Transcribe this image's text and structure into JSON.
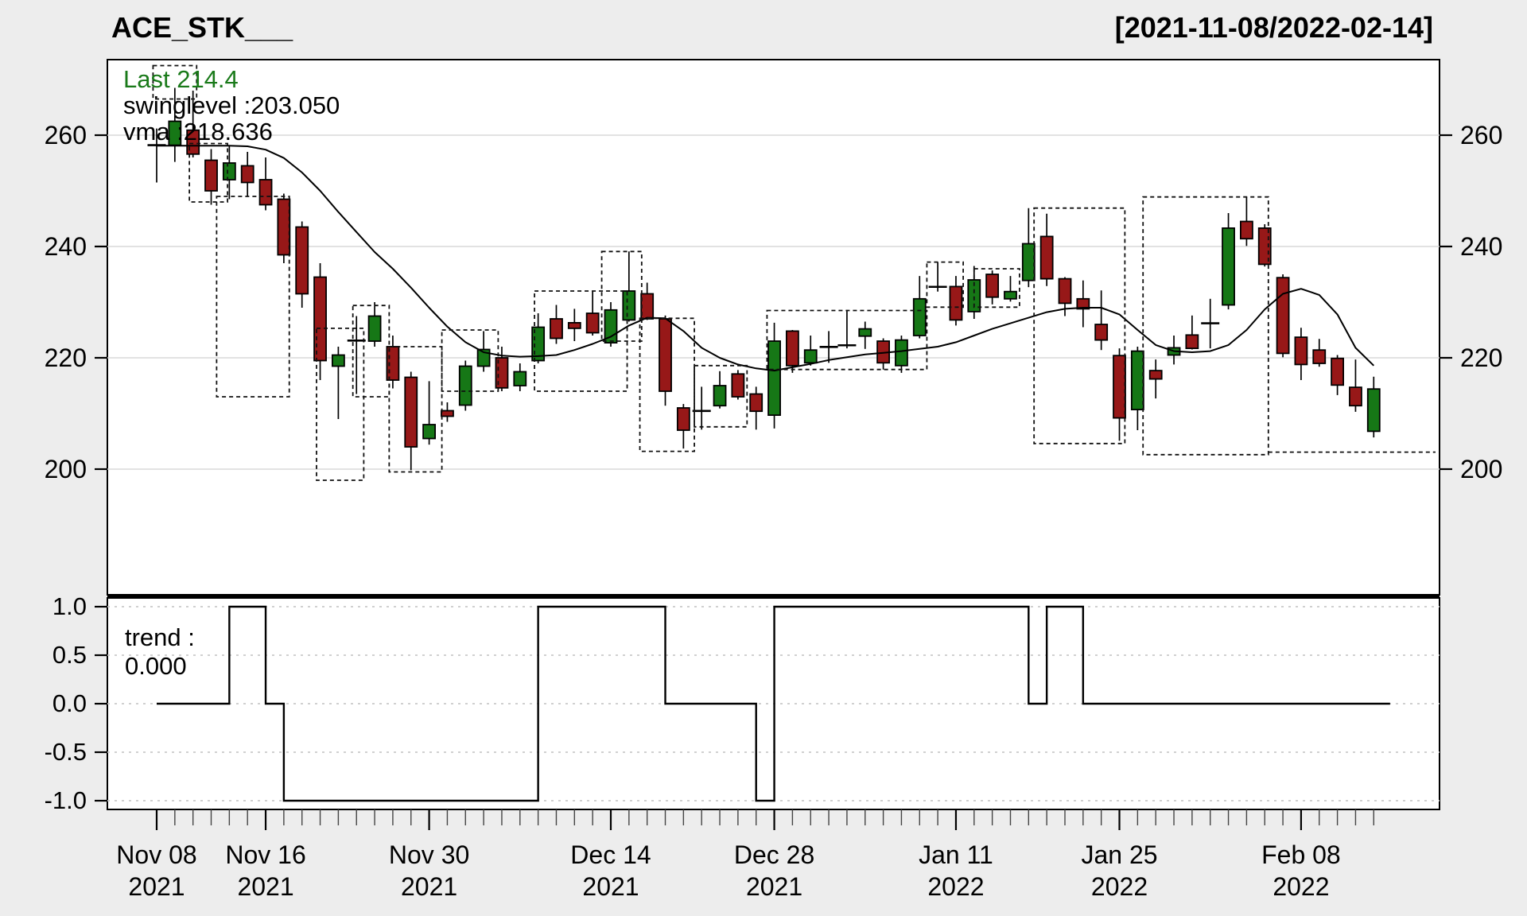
{
  "header": {
    "title": "ACE_STK___",
    "date_range": "[2021-11-08/2022-02-14]"
  },
  "overlay": {
    "last_label": "Last 214.4",
    "swinglevel_label": "swinglevel :203.050",
    "vma_label": "vma :218.636",
    "last_value": 214.4,
    "swinglevel_value": 203.05,
    "vma_value": 218.636
  },
  "trend_panel": {
    "label_line1": "trend :",
    "label_line2": "0.000",
    "tick_labels": [
      "1.0",
      "0.5",
      "0.0",
      "-0.5",
      "-1.0"
    ],
    "tick_values": [
      1,
      0.5,
      0,
      -0.5,
      -1
    ]
  },
  "price_axis": {
    "tick_labels": [
      "260",
      "240",
      "220",
      "200"
    ],
    "tick_values": [
      260,
      240,
      220,
      200
    ]
  },
  "x_axis": {
    "labels": [
      {
        "i": 0,
        "line1": "Nov 08",
        "line2": "2021"
      },
      {
        "i": 6,
        "line1": "Nov 16",
        "line2": "2021"
      },
      {
        "i": 15,
        "line1": "Nov 30",
        "line2": "2021"
      },
      {
        "i": 25,
        "line1": "Dec 14",
        "line2": "2021"
      },
      {
        "i": 34,
        "line1": "Dec 28",
        "line2": "2021"
      },
      {
        "i": 44,
        "line1": "Jan 11",
        "line2": "2022"
      },
      {
        "i": 53,
        "line1": "Jan 25",
        "line2": "2022"
      },
      {
        "i": 63,
        "line1": "Feb 08",
        "line2": "2022"
      }
    ]
  },
  "colors": {
    "up": "#167716",
    "down": "#971818",
    "wick": "#000000",
    "vma_line": "#000000",
    "trend_line": "#000000",
    "grid_price": "#d8d8d8",
    "grid_trend": "#c9c9c9",
    "panel_bg": "#ffffff",
    "figure_bg": "#ededed",
    "box_dash": "#111111",
    "axis_text": "#000000",
    "green_text": "#1a7a1a"
  },
  "chart_data": {
    "type": "candlestick",
    "title": "ACE_STK___",
    "ylim_price": [
      177,
      273.5
    ],
    "ylim_trend": [
      -1,
      1
    ],
    "grid": true,
    "dates": [
      "2021-11-08",
      "2021-11-09",
      "2021-11-10",
      "2021-11-11",
      "2021-11-12",
      "2021-11-15",
      "2021-11-16",
      "2021-11-17",
      "2021-11-18",
      "2021-11-19",
      "2021-11-22",
      "2021-11-23",
      "2021-11-24",
      "2021-11-26",
      "2021-11-29",
      "2021-11-30",
      "2021-12-01",
      "2021-12-02",
      "2021-12-03",
      "2021-12-06",
      "2021-12-07",
      "2021-12-08",
      "2021-12-09",
      "2021-12-10",
      "2021-12-13",
      "2021-12-14",
      "2021-12-15",
      "2021-12-16",
      "2021-12-17",
      "2021-12-20",
      "2021-12-21",
      "2021-12-22",
      "2021-12-23",
      "2021-12-27",
      "2021-12-28",
      "2021-12-29",
      "2021-12-30",
      "2021-12-31",
      "2022-01-03",
      "2022-01-04",
      "2022-01-05",
      "2022-01-06",
      "2022-01-07",
      "2022-01-10",
      "2022-01-11",
      "2022-01-12",
      "2022-01-13",
      "2022-01-14",
      "2022-01-18",
      "2022-01-19",
      "2022-01-20",
      "2022-01-21",
      "2022-01-24",
      "2022-01-25",
      "2022-01-26",
      "2022-01-27",
      "2022-01-28",
      "2022-01-31",
      "2022-02-01",
      "2022-02-02",
      "2022-02-03",
      "2022-02-04",
      "2022-02-07",
      "2022-02-08",
      "2022-02-09",
      "2022-02-10",
      "2022-02-11",
      "2022-02-14"
    ],
    "ohlc": [
      [
        258.2,
        261.2,
        251.5,
        258.2
      ],
      [
        258.2,
        268.5,
        255.2,
        262.5
      ],
      [
        260.9,
        268.0,
        256.0,
        256.6
      ],
      [
        255.5,
        257.5,
        247.5,
        250.0
      ],
      [
        252.0,
        258.0,
        248.5,
        255.0
      ],
      [
        254.5,
        257.0,
        249.0,
        251.5
      ],
      [
        252.0,
        256.0,
        246.5,
        247.5
      ],
      [
        248.5,
        249.5,
        237.0,
        238.5
      ],
      [
        243.5,
        244.5,
        229.0,
        231.5
      ],
      [
        234.5,
        237.0,
        216.0,
        219.5
      ],
      [
        218.5,
        222.0,
        209.0,
        220.5
      ],
      [
        223.0,
        227.5,
        213.5,
        223.2
      ],
      [
        223.0,
        230.0,
        222.0,
        227.5
      ],
      [
        222.0,
        224.0,
        214.5,
        216.0
      ],
      [
        216.5,
        217.5,
        199.8,
        204.0
      ],
      [
        205.5,
        215.8,
        204.4,
        208.0
      ],
      [
        210.5,
        212.0,
        208.5,
        209.5
      ],
      [
        211.5,
        219.5,
        210.5,
        218.5
      ],
      [
        218.5,
        224.8,
        217.5,
        221.5
      ],
      [
        220.0,
        222.0,
        214.0,
        214.6
      ],
      [
        215.0,
        219.0,
        214.0,
        217.5
      ],
      [
        219.5,
        228.0,
        219.0,
        225.5
      ],
      [
        227.0,
        229.5,
        222.5,
        223.5
      ],
      [
        226.3,
        228.8,
        223.0,
        225.3
      ],
      [
        228.0,
        232.0,
        224.0,
        224.5
      ],
      [
        222.7,
        230.0,
        222.0,
        228.6
      ],
      [
        226.8,
        239.1,
        226.5,
        232.0
      ],
      [
        231.5,
        233.5,
        226.8,
        227.0
      ],
      [
        227.0,
        227.6,
        211.4,
        214.0
      ],
      [
        211.0,
        211.7,
        203.7,
        207.0
      ],
      [
        210.4,
        214.8,
        207.1,
        210.5
      ],
      [
        211.4,
        217.6,
        210.9,
        215.0
      ],
      [
        217.1,
        217.8,
        212.5,
        213.0
      ],
      [
        213.5,
        214.8,
        207.1,
        210.4
      ],
      [
        209.7,
        226.3,
        207.3,
        223.0
      ],
      [
        224.8,
        225.0,
        217.3,
        218.6
      ],
      [
        219.1,
        224.0,
        218.6,
        221.4
      ],
      [
        221.9,
        224.8,
        219.1,
        222.0
      ],
      [
        222.2,
        228.6,
        221.7,
        222.3
      ],
      [
        223.9,
        226.5,
        221.6,
        225.2
      ],
      [
        223.0,
        223.5,
        217.9,
        219.1
      ],
      [
        218.6,
        224.0,
        217.3,
        223.2
      ],
      [
        224.0,
        234.7,
        223.5,
        230.6
      ],
      [
        232.7,
        237.2,
        231.9,
        232.8
      ],
      [
        232.8,
        234.7,
        225.8,
        226.8
      ],
      [
        228.3,
        236.5,
        227.0,
        234.0
      ],
      [
        235.0,
        235.7,
        229.6,
        230.9
      ],
      [
        230.6,
        234.7,
        230.1,
        231.9
      ],
      [
        233.9,
        246.9,
        232.7,
        240.5
      ],
      [
        241.8,
        245.9,
        232.9,
        234.2
      ],
      [
        234.2,
        234.5,
        227.5,
        229.8
      ],
      [
        230.6,
        233.9,
        225.5,
        228.8
      ],
      [
        226.0,
        232.1,
        221.4,
        223.2
      ],
      [
        220.4,
        221.7,
        205.1,
        209.2
      ],
      [
        210.7,
        222.0,
        207.0,
        221.2
      ],
      [
        217.7,
        219.7,
        212.7,
        216.2
      ],
      [
        220.5,
        224.0,
        218.8,
        221.8
      ],
      [
        224.1,
        227.6,
        221.5,
        221.7
      ],
      [
        226.2,
        230.6,
        221.7,
        226.2
      ],
      [
        229.5,
        246.0,
        228.7,
        243.3
      ],
      [
        244.5,
        248.9,
        240.1,
        241.4
      ],
      [
        243.3,
        244.0,
        236.4,
        236.8
      ],
      [
        234.4,
        235.0,
        220.1,
        220.8
      ],
      [
        223.7,
        225.4,
        216.0,
        218.8
      ],
      [
        221.4,
        223.4,
        218.4,
        219.0
      ],
      [
        219.9,
        220.5,
        213.3,
        215.1
      ],
      [
        214.7,
        219.7,
        210.3,
        211.4
      ],
      [
        206.8,
        216.6,
        205.7,
        214.4
      ]
    ],
    "vma": [
      258.1,
      258.1,
      258.1,
      258.1,
      258.1,
      258.0,
      257.4,
      255.9,
      253.3,
      250.0,
      246.2,
      242.6,
      239.0,
      236.0,
      232.6,
      229.0,
      225.6,
      222.8,
      221.0,
      220.4,
      220.2,
      220.3,
      220.5,
      221.4,
      222.5,
      223.8,
      225.8,
      227.2,
      227.1,
      224.8,
      221.8,
      220.0,
      218.8,
      218.1,
      217.7,
      218.3,
      218.9,
      219.6,
      220.1,
      220.6,
      220.9,
      221.2,
      221.6,
      222.0,
      222.8,
      224.0,
      225.2,
      226.2,
      227.2,
      228.2,
      228.8,
      229.0,
      229.0,
      227.8,
      225.0,
      222.3,
      221.2,
      221.0,
      221.2,
      222.3,
      225.0,
      228.7,
      231.5,
      232.4,
      231.3,
      227.8,
      221.8,
      218.6
    ],
    "trend": [
      0,
      0,
      0,
      0,
      1,
      1,
      0,
      -1,
      -1,
      -1,
      -1,
      -1,
      -1,
      -1,
      -1,
      -1,
      -1,
      -1,
      -1,
      -1,
      -1,
      1,
      1,
      1,
      1,
      1,
      1,
      1,
      0,
      0,
      0,
      0,
      0,
      -1,
      1,
      1,
      1,
      1,
      1,
      1,
      1,
      1,
      1,
      1,
      1,
      1,
      1,
      1,
      0,
      1,
      1,
      0,
      0,
      0,
      0,
      0,
      0,
      0,
      0,
      0,
      0,
      0,
      0,
      0,
      0,
      0,
      0,
      0
    ],
    "swing_boxes": [
      [
        -0.2,
        2.2,
        266.5,
        272.5
      ],
      [
        1.8,
        3.9,
        248.0,
        258.5
      ],
      [
        3.3,
        7.3,
        213.0,
        249.0
      ],
      [
        8.8,
        11.4,
        198.0,
        225.3
      ],
      [
        10.8,
        12.8,
        213.0,
        229.4
      ],
      [
        12.8,
        15.7,
        199.5,
        222.0
      ],
      [
        15.7,
        18.8,
        214.0,
        225.0
      ],
      [
        20.8,
        25.9,
        214.0,
        232.0
      ],
      [
        24.5,
        26.7,
        223.0,
        239.1
      ],
      [
        26.6,
        29.6,
        203.2,
        227.1
      ],
      [
        29.6,
        32.5,
        207.6,
        218.6
      ],
      [
        33.6,
        42.4,
        217.9,
        228.5
      ],
      [
        42.4,
        44.4,
        229.1,
        237.2
      ],
      [
        45.0,
        47.5,
        229.1,
        236.0
      ],
      [
        48.3,
        53.3,
        204.6,
        246.9
      ],
      [
        54.3,
        61.2,
        202.6,
        248.9
      ]
    ],
    "swing_level_line": {
      "from_i": 61.2,
      "to_i": 70.4,
      "level": 203.05
    },
    "legend_position": "top-left-inside"
  }
}
